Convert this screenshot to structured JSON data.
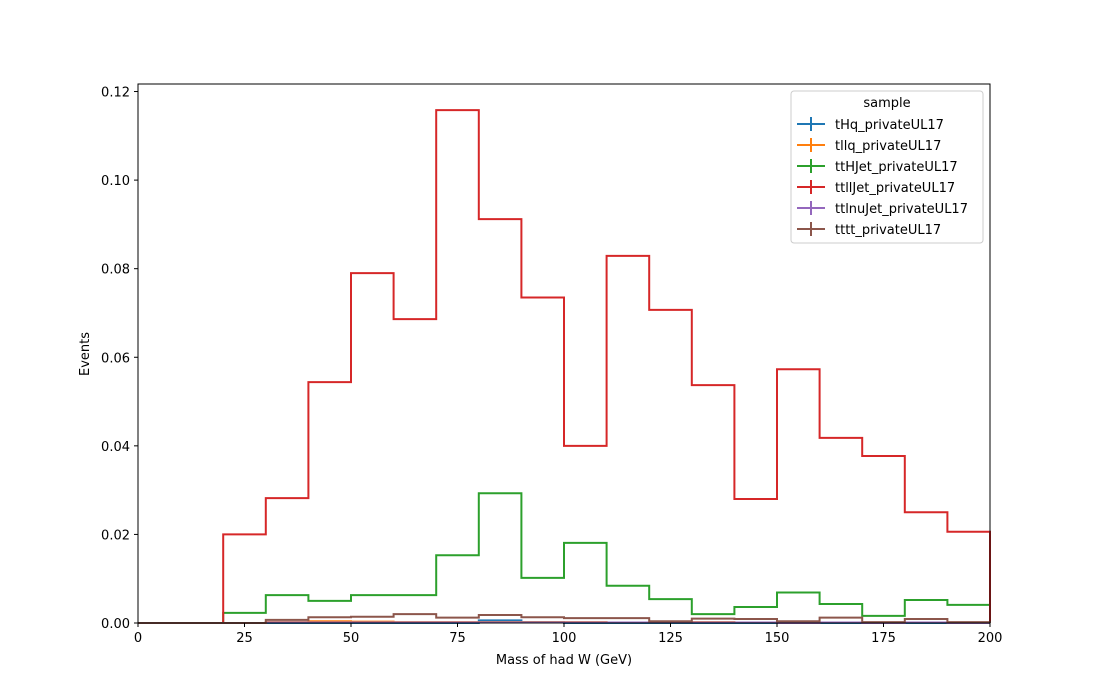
{
  "chart_data": {
    "type": "histogram-step",
    "xlabel": "Mass of had W (GeV)",
    "ylabel": "Events",
    "xlim": [
      0,
      200
    ],
    "ylim": [
      0,
      0.1217
    ],
    "xticks": [
      0,
      25,
      50,
      75,
      100,
      125,
      150,
      175,
      200
    ],
    "yticks": [
      0.0,
      0.02,
      0.04,
      0.06,
      0.08,
      0.1,
      0.12
    ],
    "ytick_labels": [
      "0.00",
      "0.02",
      "0.04",
      "0.06",
      "0.08",
      "0.10",
      "0.12"
    ],
    "grid": false,
    "legend": {
      "title": "sample",
      "placement": "top-right"
    },
    "bin_edges": [
      0,
      10,
      20,
      30,
      40,
      50,
      60,
      70,
      80,
      90,
      100,
      110,
      120,
      130,
      140,
      150,
      160,
      170,
      180,
      190,
      200
    ],
    "series": [
      {
        "name": "tHq_privateUL17",
        "color": "#1f77b4",
        "values": [
          0,
          0,
          0,
          0,
          0,
          0,
          0,
          0,
          0.0006,
          0.0002,
          0,
          0,
          0,
          0,
          0,
          0,
          0,
          0,
          0,
          0
        ]
      },
      {
        "name": "tllq_privateUL17",
        "color": "#ff7f0e",
        "values": [
          0,
          0,
          0,
          0.0002,
          0.0004,
          0.0003,
          0.0002,
          0.0002,
          0.0002,
          0.0002,
          0.0002,
          0.0001,
          0.0001,
          0.0002,
          0.0001,
          0.0001,
          0.0001,
          0.0001,
          0.0001,
          0.0001
        ]
      },
      {
        "name": "ttHJet_privateUL17",
        "color": "#2ca02c",
        "values": [
          0,
          0,
          0.0023,
          0.0063,
          0.005,
          0.0063,
          0.0063,
          0.0153,
          0.0293,
          0.0102,
          0.0181,
          0.0084,
          0.0054,
          0.002,
          0.0036,
          0.0069,
          0.0043,
          0.0016,
          0.0052,
          0.0041
        ]
      },
      {
        "name": "ttllJet_privateUL17",
        "color": "#d62728",
        "values": [
          0,
          0,
          0.02,
          0.0282,
          0.0544,
          0.079,
          0.0686,
          0.1158,
          0.0912,
          0.0735,
          0.04,
          0.0829,
          0.0707,
          0.0537,
          0.028,
          0.0573,
          0.0418,
          0.0377,
          0.025,
          0.0206
        ]
      },
      {
        "name": "ttlnuJet_privateUL17",
        "color": "#9467bd",
        "values": [
          0,
          0,
          0,
          0.0001,
          0.0001,
          0.0001,
          0.0001,
          0.0001,
          0.0001,
          0.0001,
          0.0001,
          0.0001,
          0.0001,
          0.0001,
          0.0001,
          0,
          0.0001,
          0,
          0.0001,
          0
        ]
      },
      {
        "name": "tttt_privateUL17",
        "color": "#8c564b",
        "values": [
          0,
          0,
          0,
          0.0007,
          0.0013,
          0.0014,
          0.002,
          0.0012,
          0.0018,
          0.0013,
          0.0011,
          0.0011,
          0.0004,
          0.001,
          0.0009,
          0.0004,
          0.0012,
          0.0002,
          0.0009,
          0.0002
        ]
      }
    ]
  }
}
